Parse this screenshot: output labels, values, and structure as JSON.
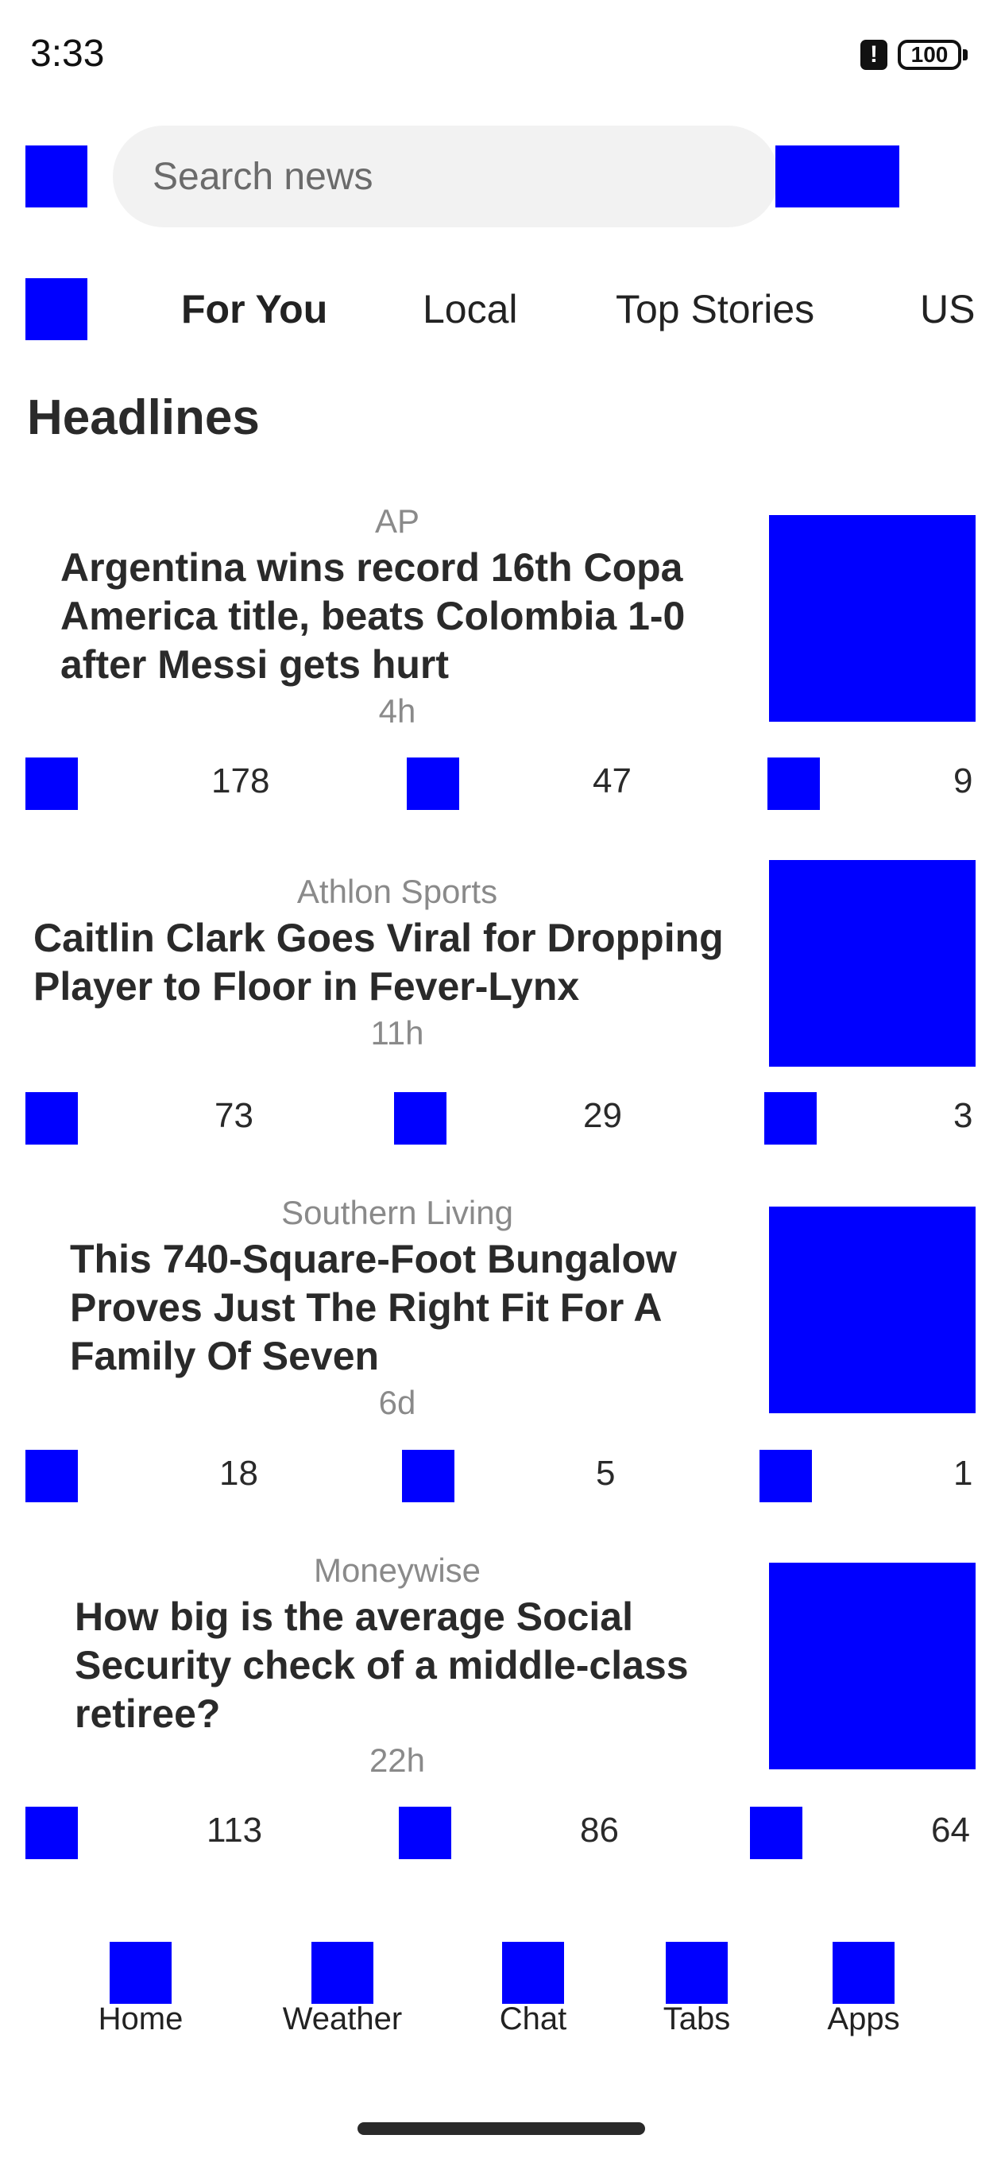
{
  "status_bar": {
    "time": "3:33",
    "alert_glyph": "!",
    "battery": "100"
  },
  "search": {
    "placeholder": "Search news",
    "value": ""
  },
  "tabs": [
    {
      "label": "For You",
      "active": true
    },
    {
      "label": "Local",
      "active": false
    },
    {
      "label": "Top Stories",
      "active": false
    },
    {
      "label": "US",
      "active": false
    }
  ],
  "section_title": "Headlines",
  "articles": [
    {
      "source": "AP",
      "lines": [
        "Argentina wins record 16th Copa",
        "America title, beats Colombia 1-0",
        "after Messi gets hurt"
      ],
      "time": "4h",
      "likes": "178",
      "comments": "47",
      "shares": "9"
    },
    {
      "source": "Athlon Sports",
      "lines": [
        "Caitlin Clark Goes Viral for Dropping",
        "Player to Floor in Fever-Lynx"
      ],
      "time": "11h",
      "likes": "73",
      "comments": "29",
      "shares": "3"
    },
    {
      "source": "Southern Living",
      "lines": [
        "This 740-Square-Foot Bungalow",
        "Proves Just The Right Fit For A",
        "Family Of Seven"
      ],
      "time": "6d",
      "likes": "18",
      "comments": "5",
      "shares": "1"
    },
    {
      "source": "Moneywise",
      "lines": [
        "How big is the average Social",
        "Security check of a middle-class",
        "retiree?"
      ],
      "time": "22h",
      "likes": "113",
      "comments": "86",
      "shares": "64"
    }
  ],
  "bottom_nav": [
    {
      "label": "Home"
    },
    {
      "label": "Weather"
    },
    {
      "label": "Chat"
    },
    {
      "label": "Tabs"
    },
    {
      "label": "Apps"
    }
  ],
  "icons": {
    "menu": "menu-icon",
    "profile": "profile-icon",
    "tab_settings": "tab-settings-icon",
    "like": "like-icon",
    "comment": "comment-icon",
    "share": "share-icon"
  },
  "colors": {
    "placeholder_block": "#0000ff",
    "search_bg": "#f2f2f2",
    "meta_text": "#8a8a8a"
  }
}
